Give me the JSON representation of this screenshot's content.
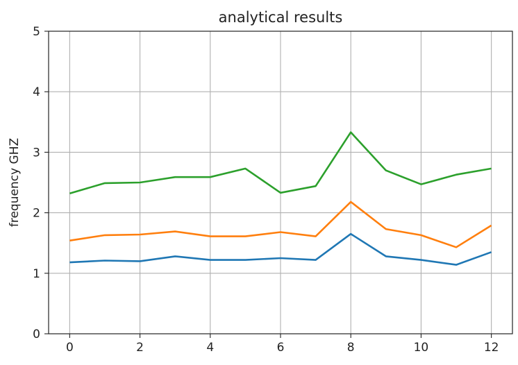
{
  "chart_data": {
    "type": "line",
    "title": "analytical results",
    "xlabel": "",
    "ylabel": "frequency GHZ",
    "xlim": [
      -0.6,
      12.6
    ],
    "ylim": [
      0,
      5
    ],
    "xticks": [
      0,
      2,
      4,
      6,
      8,
      10,
      12
    ],
    "yticks": [
      0,
      1,
      2,
      3,
      4,
      5
    ],
    "grid": true,
    "legend": "none",
    "x": [
      0,
      1,
      2,
      3,
      4,
      5,
      6,
      7,
      8,
      9,
      10,
      11,
      12
    ],
    "series": [
      {
        "color": "#1f77b4",
        "values": [
          1.18,
          1.21,
          1.2,
          1.28,
          1.22,
          1.22,
          1.25,
          1.22,
          1.65,
          1.28,
          1.22,
          1.14,
          1.35
        ]
      },
      {
        "color": "#ff7f0e",
        "values": [
          1.54,
          1.63,
          1.64,
          1.69,
          1.61,
          1.61,
          1.68,
          1.61,
          2.18,
          1.73,
          1.63,
          1.43,
          1.79
        ]
      },
      {
        "color": "#2ca02c",
        "values": [
          2.32,
          2.49,
          2.5,
          2.59,
          2.59,
          2.73,
          2.33,
          2.44,
          3.33,
          2.7,
          2.47,
          2.63,
          2.73
        ]
      }
    ]
  }
}
